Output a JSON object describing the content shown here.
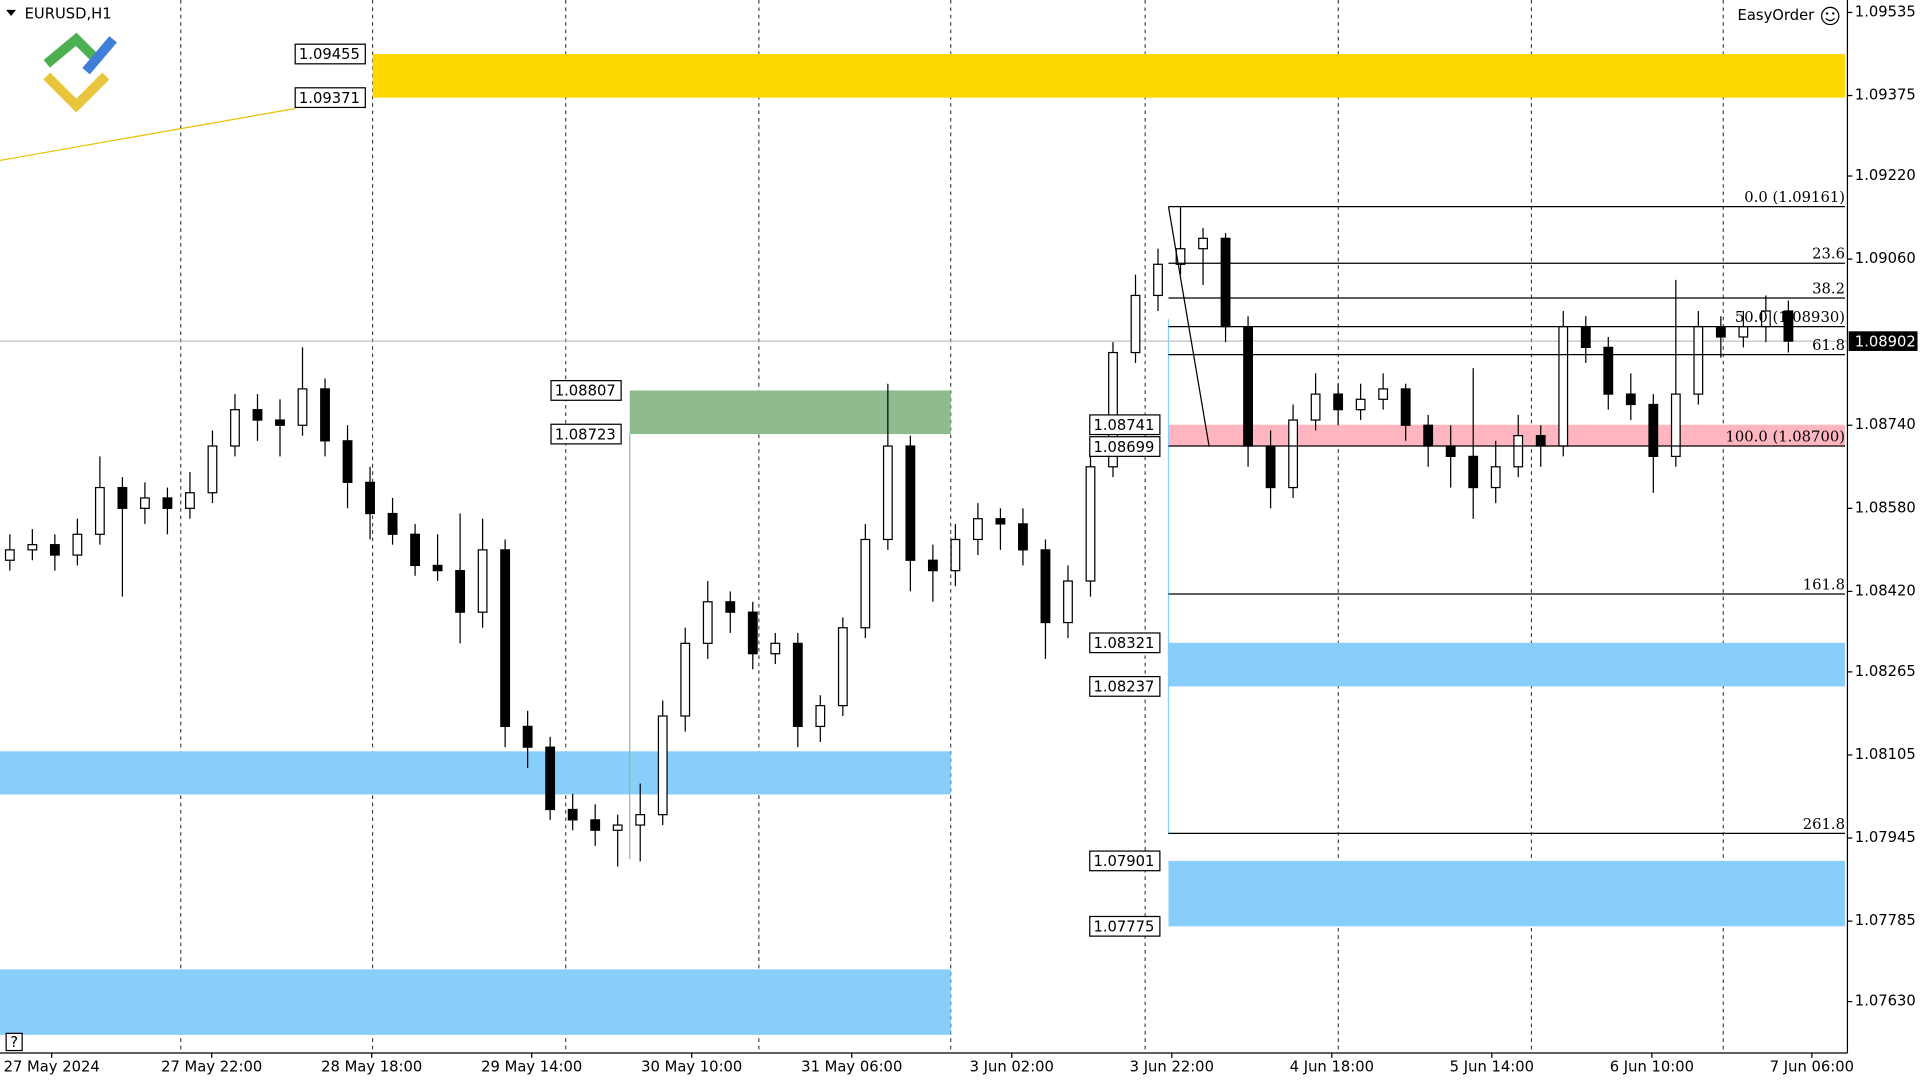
{
  "chart_data": {
    "type": "candlestick",
    "symbol": "EURUSD,H1",
    "expert": "EasyOrder",
    "help": "?",
    "ylim": [
      1.07531,
      1.09559
    ],
    "yticks": [
      1.09535,
      1.09375,
      {
        "value": 1.0922,
        "label": "1.09220"
      },
      {
        "value": 1.0906,
        "label": "1.09060"
      },
      {
        "value": 1.0874,
        "label": "1.08740"
      },
      {
        "value": 1.0858,
        "label": "1.08580"
      },
      {
        "value": 1.0842,
        "label": "1.08420"
      },
      1.08265,
      1.08105,
      1.07945,
      1.07785,
      {
        "value": 1.0763,
        "label": "1.07630"
      }
    ],
    "x_labels": [
      "27 May 2024",
      "27 May 22:00",
      "28 May 18:00",
      "29 May 14:00",
      "30 May 10:00",
      "31 May 06:00",
      "3 Jun 02:00",
      "3 Jun 22:00",
      "4 Jun 18:00",
      "5 Jun 14:00",
      "6 Jun 10:00",
      "7 Jun 06:00"
    ],
    "candles": [
      [
        1.0848,
        1.0853,
        1.0846,
        1.085
      ],
      [
        1.085,
        1.0854,
        1.0848,
        1.0851
      ],
      [
        1.0851,
        1.0853,
        1.0846,
        1.0849
      ],
      [
        1.0849,
        1.0856,
        1.0847,
        1.0853
      ],
      [
        1.0853,
        1.0868,
        1.0851,
        1.0862
      ],
      [
        1.0862,
        1.0864,
        1.0841,
        1.0858
      ],
      [
        1.0858,
        1.0863,
        1.0855,
        1.086
      ],
      [
        1.086,
        1.0862,
        1.0853,
        1.0858
      ],
      [
        1.0858,
        1.0865,
        1.0856,
        1.0861
      ],
      [
        1.0861,
        1.0873,
        1.0859,
        1.087
      ],
      [
        1.087,
        1.088,
        1.0868,
        1.0877
      ],
      [
        1.0877,
        1.088,
        1.0871,
        1.0875
      ],
      [
        1.0875,
        1.0879,
        1.0868,
        1.0874
      ],
      [
        1.0874,
        1.0889,
        1.0872,
        1.0881
      ],
      [
        1.0881,
        1.0883,
        1.0868,
        1.0871
      ],
      [
        1.0871,
        1.0874,
        1.0858,
        1.0863
      ],
      [
        1.0863,
        1.0866,
        1.0852,
        1.0857
      ],
      [
        1.0857,
        1.086,
        1.0851,
        1.0853
      ],
      [
        1.0853,
        1.0855,
        1.0845,
        1.0847
      ],
      [
        1.0847,
        1.0853,
        1.0844,
        1.0846
      ],
      [
        1.0846,
        1.0857,
        1.0832,
        1.0838
      ],
      [
        1.0838,
        1.0856,
        1.0835,
        1.085
      ],
      [
        1.085,
        1.0852,
        1.0812,
        1.0816
      ],
      [
        1.0816,
        1.0819,
        1.0808,
        1.0812
      ],
      [
        1.0812,
        1.0814,
        1.0798,
        1.08
      ],
      [
        1.08,
        1.0803,
        1.0796,
        1.0798
      ],
      [
        1.0798,
        1.0801,
        1.0793,
        1.0796
      ],
      [
        1.0796,
        1.0799,
        1.0789,
        1.0797
      ],
      [
        1.0797,
        1.0805,
        1.079,
        1.0799
      ],
      [
        1.0799,
        1.0821,
        1.0797,
        1.0818
      ],
      [
        1.0818,
        1.0835,
        1.0815,
        1.0832
      ],
      [
        1.0832,
        1.0844,
        1.0829,
        1.084
      ],
      [
        1.084,
        1.0842,
        1.0834,
        1.0838
      ],
      [
        1.0838,
        1.084,
        1.0827,
        1.083
      ],
      [
        1.083,
        1.0834,
        1.0828,
        1.0832
      ],
      [
        1.0832,
        1.0834,
        1.0812,
        1.0816
      ],
      [
        1.0816,
        1.0822,
        1.0813,
        1.082
      ],
      [
        1.082,
        1.0837,
        1.0818,
        1.0835
      ],
      [
        1.0835,
        1.0855,
        1.0833,
        1.0852
      ],
      [
        1.0852,
        1.0882,
        1.085,
        1.087
      ],
      [
        1.087,
        1.0872,
        1.0842,
        1.0848
      ],
      [
        1.0848,
        1.0851,
        1.084,
        1.0846
      ],
      [
        1.0846,
        1.0855,
        1.0843,
        1.0852
      ],
      [
        1.0852,
        1.0859,
        1.0849,
        1.0856
      ],
      [
        1.0856,
        1.0858,
        1.085,
        1.0855
      ],
      [
        1.0855,
        1.0858,
        1.0847,
        1.085
      ],
      [
        1.085,
        1.0852,
        1.0829,
        1.0836
      ],
      [
        1.0836,
        1.0847,
        1.0833,
        1.0844
      ],
      [
        1.0844,
        1.0868,
        1.0841,
        1.0866
      ],
      [
        1.0866,
        1.089,
        1.0864,
        1.0888
      ],
      [
        1.0888,
        1.0903,
        1.0886,
        1.0899
      ],
      [
        1.0899,
        1.0908,
        1.0896,
        1.0905
      ],
      [
        1.0905,
        1.0916,
        1.0903,
        1.0908
      ],
      [
        1.0908,
        1.0912,
        1.0901,
        1.091
      ],
      [
        1.091,
        1.0911,
        1.089,
        1.0893
      ],
      [
        1.0893,
        1.0895,
        1.0866,
        1.087
      ],
      [
        1.087,
        1.0873,
        1.0858,
        1.0862
      ],
      [
        1.0862,
        1.0878,
        1.086,
        1.0875
      ],
      [
        1.0875,
        1.0884,
        1.0873,
        1.088
      ],
      [
        1.088,
        1.0882,
        1.0874,
        1.0877
      ],
      [
        1.0877,
        1.0882,
        1.0875,
        1.0879
      ],
      [
        1.0879,
        1.0884,
        1.0877,
        1.0881
      ],
      [
        1.0881,
        1.0882,
        1.0871,
        1.0874
      ],
      [
        1.0874,
        1.0876,
        1.0866,
        1.087
      ],
      [
        1.087,
        1.0874,
        1.0862,
        1.0868
      ],
      [
        1.0868,
        1.0885,
        1.0856,
        1.0862
      ],
      [
        1.0862,
        1.0871,
        1.0859,
        1.0866
      ],
      [
        1.0866,
        1.0876,
        1.0864,
        1.0872
      ],
      [
        1.0872,
        1.0874,
        1.0866,
        1.087
      ],
      [
        1.087,
        1.0896,
        1.0868,
        1.0893
      ],
      [
        1.0893,
        1.0895,
        1.0886,
        1.0889
      ],
      [
        1.0889,
        1.0891,
        1.0877,
        1.088
      ],
      [
        1.088,
        1.0884,
        1.0875,
        1.0878
      ],
      [
        1.0878,
        1.088,
        1.0861,
        1.0868
      ],
      [
        1.0868,
        1.0902,
        1.0866,
        1.088
      ],
      [
        1.088,
        1.0896,
        1.0878,
        1.0893
      ],
      [
        1.0893,
        1.0895,
        1.0887,
        1.0891
      ],
      [
        1.0891,
        1.0896,
        1.0889,
        1.0893
      ],
      [
        1.0893,
        1.0899,
        1.089,
        1.0896
      ],
      [
        1.0896,
        1.0898,
        1.0888,
        1.08902
      ]
    ],
    "zones": [
      {
        "color": "#ffd700",
        "prices": [
          1.09455,
          1.09371
        ],
        "labeled": true
      },
      {
        "color": "#8fbc8f",
        "prices": [
          1.08807,
          1.08723
        ],
        "labeled": true
      },
      {
        "color": "#ffb6c1",
        "prices": [
          1.08741,
          1.08699
        ],
        "labeled": true
      },
      {
        "color": "#87cefa",
        "prices": [
          1.08112,
          1.08029
        ],
        "labeled": false
      },
      {
        "color": "#87cefa",
        "prices": [
          1.07692,
          1.07566
        ],
        "labeled": false
      },
      {
        "color": "#87cefa",
        "prices": [
          1.08321,
          1.08237
        ],
        "labeled": true
      },
      {
        "color": "#87cefa",
        "prices": [
          1.07901,
          1.07775
        ],
        "labeled": true
      }
    ],
    "trendline": [
      1.0925,
      1.0935
    ],
    "fibonacci": [
      {
        "label": "0.0 (1.09161)",
        "price": 1.09161
      },
      {
        "label": "23.6",
        "price": 1.09052
      },
      {
        "label": "38.2",
        "price": 1.08985
      },
      {
        "label": "50.0 (1.08930)",
        "price": 1.0893
      },
      {
        "label": "61.8",
        "price": 1.08876
      },
      {
        "label": "100.0 (1.08700)",
        "price": 1.087
      },
      {
        "label": "161.8",
        "price": 1.08415
      },
      {
        "label": "261.8",
        "price": 1.07954
      }
    ]
  }
}
